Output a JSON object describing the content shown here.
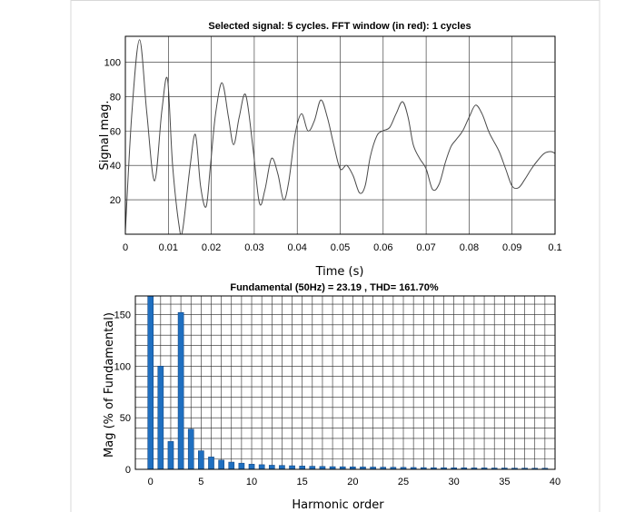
{
  "chart_data": [
    {
      "type": "line",
      "title": "Selected signal: 5 cycles. FFT window (in red): 1 cycles",
      "xlabel": "Time (s)",
      "ylabel": "Signal mag.",
      "xlim": [
        0,
        0.1
      ],
      "ylim": [
        0,
        115
      ],
      "xticks": [
        "0",
        "0.01",
        "0.02",
        "0.03",
        "0.04",
        "0.05",
        "0.06",
        "0.07",
        "0.08",
        "0.09",
        "0.1"
      ],
      "yticks": [
        "20",
        "40",
        "60",
        "80",
        "100"
      ],
      "grid": true,
      "series": [
        {
          "x": [
            0,
            0.0015,
            0.0033,
            0.005,
            0.0068,
            0.0085,
            0.0098,
            0.011,
            0.0125,
            0.0133,
            0.015,
            0.0163,
            0.0175,
            0.0188,
            0.0198,
            0.021,
            0.0225,
            0.024,
            0.0252,
            0.0265,
            0.028,
            0.0297,
            0.0312,
            0.0325,
            0.034,
            0.0355,
            0.0368,
            0.038,
            0.0395,
            0.041,
            0.0425,
            0.044,
            0.0455,
            0.047,
            0.0485,
            0.05,
            0.0515,
            0.053,
            0.0545,
            0.0558,
            0.057,
            0.0585,
            0.0598,
            0.0615,
            0.063,
            0.0645,
            0.0658,
            0.067,
            0.0685,
            0.07,
            0.0715,
            0.073,
            0.0745,
            0.0758,
            0.077,
            0.0785,
            0.08,
            0.0815,
            0.083,
            0.0845,
            0.0855,
            0.087,
            0.0885,
            0.09,
            0.0915,
            0.093,
            0.0945,
            0.096,
            0.0975,
            0.099,
            0.1
          ],
          "y": [
            2,
            70,
            113,
            70,
            31,
            72,
            90,
            40,
            5,
            2,
            38,
            58,
            28,
            16,
            40,
            70,
            88,
            68,
            52,
            68,
            81,
            50,
            18,
            26,
            44,
            35,
            20,
            30,
            58,
            70,
            60,
            66,
            78,
            68,
            52,
            38,
            40,
            34,
            24,
            28,
            45,
            57,
            60,
            62,
            70,
            77,
            68,
            52,
            44,
            38,
            26,
            29,
            42,
            51,
            55,
            60,
            68,
            75,
            70,
            60,
            55,
            48,
            38,
            28,
            27,
            32,
            38,
            43,
            47,
            48,
            47
          ]
        }
      ]
    },
    {
      "type": "bar",
      "title": "Fundamental (50Hz) = 23.19 , THD= 161.70%",
      "xlabel": "Harmonic order",
      "ylabel": "Mag (% of Fundamental)",
      "xlim": [
        -1.5,
        40
      ],
      "ylim": [
        0,
        168
      ],
      "xticks": [
        "0",
        "5",
        "10",
        "15",
        "20",
        "25",
        "30",
        "35",
        "40"
      ],
      "yticks": [
        "0",
        "50",
        "100",
        "150"
      ],
      "grid": true,
      "categories": [
        0,
        1,
        2,
        3,
        4,
        5,
        6,
        7,
        8,
        9,
        10,
        11,
        12,
        13,
        14,
        15,
        16,
        17,
        18,
        19,
        20,
        21,
        22,
        23,
        24,
        25,
        26,
        27,
        28,
        29,
        30,
        31,
        32,
        33,
        34,
        35,
        36,
        37,
        38,
        39
      ],
      "values": [
        168,
        100,
        27,
        152,
        39,
        18,
        12,
        9,
        7,
        6,
        5,
        4.5,
        4,
        3.8,
        3.5,
        3.2,
        3,
        2.8,
        2.6,
        2.5,
        2.4,
        2.3,
        2.2,
        2.1,
        2,
        1.9,
        1.8,
        1.7,
        1.6,
        1.6,
        1.5,
        1.5,
        1.4,
        1.4,
        1.3,
        1.3,
        1.2,
        1.2,
        1.1,
        1.1
      ]
    }
  ]
}
